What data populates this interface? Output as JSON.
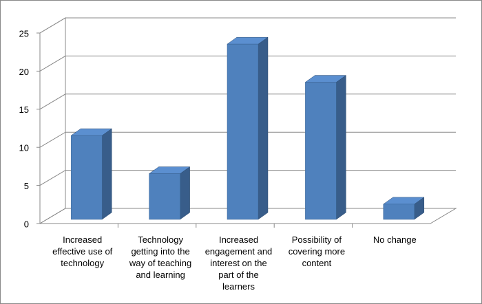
{
  "chart_data": {
    "type": "bar3d",
    "categories": [
      "Increased effective use of technology",
      "Technology getting into the way of teaching and learning",
      "Increased engagement and interest on the part of the learners",
      "Possibility of covering more content",
      "No change"
    ],
    "values": [
      11,
      6,
      23,
      18,
      2
    ],
    "color": "#4f81bd",
    "ylim": [
      0,
      25
    ],
    "yticks": [
      0,
      5,
      10,
      15,
      20,
      25
    ],
    "grid": true
  }
}
